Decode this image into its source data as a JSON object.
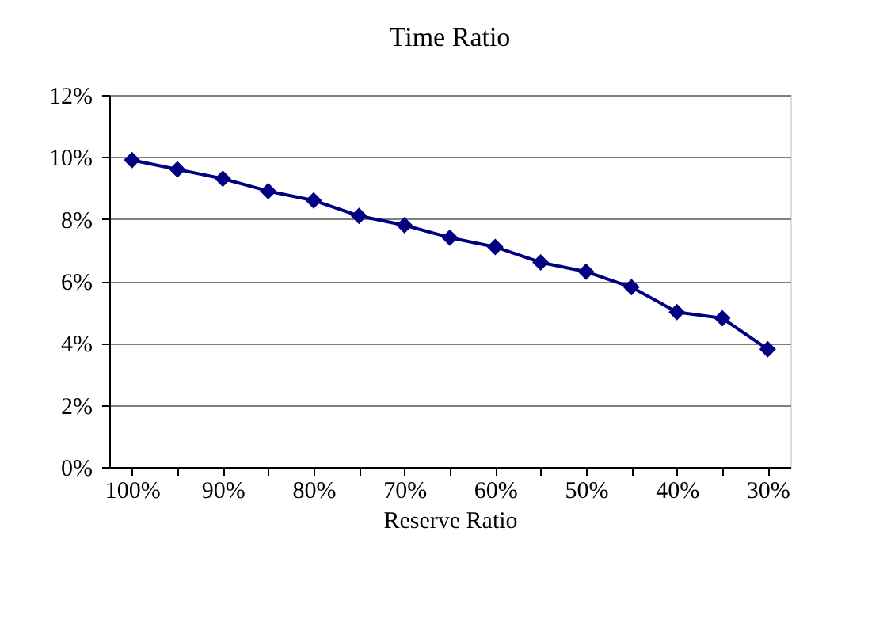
{
  "chart_data": {
    "type": "line",
    "title": "Time Ratio",
    "xlabel": "Reserve Ratio",
    "categories": [
      "100%",
      null,
      "90%",
      null,
      "80%",
      null,
      "70%",
      null,
      "60%",
      null,
      "50%",
      null,
      "40%",
      null,
      "30%"
    ],
    "series": [
      {
        "color": "#000080",
        "values": [
          9.9,
          9.6,
          9.3,
          8.9,
          8.6,
          8.1,
          7.8,
          7.4,
          7.1,
          6.6,
          6.3,
          5.8,
          5.0,
          4.8,
          3.8
        ]
      }
    ],
    "ylim": [
      0,
      12
    ],
    "yticks": [
      {
        "value": 0,
        "label": "0%"
      },
      {
        "value": 2,
        "label": "2%"
      },
      {
        "value": 4,
        "label": "4%"
      },
      {
        "value": 6,
        "label": "6%"
      },
      {
        "value": 8,
        "label": "8%"
      },
      {
        "value": 10,
        "label": "10%"
      },
      {
        "value": 12,
        "label": "12%"
      }
    ],
    "grid": "y",
    "marker": "diamond",
    "line_style": "solid",
    "legend": false
  }
}
